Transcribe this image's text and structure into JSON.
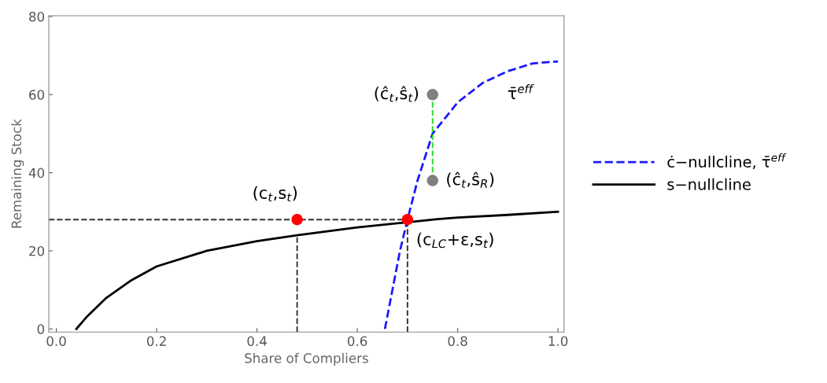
{
  "chart_data": {
    "type": "line",
    "xlabel": "Share of Compliers",
    "ylabel": "Remaining Stock",
    "xlim": [
      -0.015,
      1.012
    ],
    "ylim": [
      -0.8,
      80.2
    ],
    "xticks": [
      {
        "value": 0,
        "label": "0.0"
      },
      0.2,
      0.4,
      0.6,
      0.8,
      {
        "value": 1,
        "label": "1.0"
      }
    ],
    "yticks": [
      0,
      20,
      40,
      60,
      80
    ],
    "grid": false,
    "legend": "right",
    "marker": "none",
    "series": [
      {
        "name": "ċ−nullcline, τ̄$^{eff}$",
        "color": "#1a1aff",
        "line_style": "dashed",
        "x": [
          0.655,
          0.67,
          0.685,
          0.7,
          0.72,
          0.75,
          0.8,
          0.85,
          0.9,
          0.95,
          1.0
        ],
        "values": [
          0,
          10,
          20,
          28,
          38,
          50,
          58,
          63,
          66,
          68,
          68.5
        ]
      },
      {
        "name": "s−nullcline",
        "color": "#000000",
        "line_style": "solid",
        "x": [
          0.04,
          0.06,
          0.1,
          0.15,
          0.2,
          0.3,
          0.4,
          0.48,
          0.6,
          0.76,
          0.8,
          0.9,
          1.0
        ],
        "values": [
          0,
          3,
          8,
          12.5,
          16,
          20,
          22.5,
          24,
          26,
          28.1,
          28.5,
          29.2,
          30
        ]
      },
      {
        "color": "#333333",
        "line_style": "dashed",
        "x": [
          -0.015,
          0.7
        ],
        "values": [
          28,
          28
        ]
      },
      {
        "color": "#333333",
        "line_style": "dashed",
        "x": [
          0.48,
          0.48
        ],
        "values": [
          -0.8,
          24
        ]
      },
      {
        "color": "#333333",
        "line_style": "dashed",
        "x": [
          0.7,
          0.7
        ],
        "values": [
          -0.8,
          27.5
        ]
      },
      {
        "color": "#22dd22",
        "line_style": "dashed",
        "x": [
          0.75,
          0.75
        ],
        "values": [
          38,
          60
        ]
      },
      {
        "type": "scatter",
        "marker": "circle",
        "color": "#ff0000",
        "x": [
          0.48,
          0.7
        ],
        "values": [
          28,
          28
        ]
      },
      {
        "type": "scatter",
        "marker": "circle",
        "color": "#808080",
        "x": [
          0.75,
          0.75
        ],
        "values": [
          60,
          38
        ]
      }
    ],
    "annotations": [
      {
        "text": "(c$_{t}$,s$_{t}$)",
        "x": 0.48,
        "y": 28
      },
      {
        "text": "(c$_{LC}$+ε,s$_{t}$)",
        "x": 0.7,
        "y": 28
      },
      {
        "text": "(ĉ$_{t}$,ŝ$_{t}$)",
        "x": 0.75,
        "y": 60
      },
      {
        "text": "(ĉ$_{t}$,ŝ$_{R}$)",
        "x": 0.75,
        "y": 38
      },
      "τ̄$^{eff}$"
    ]
  }
}
